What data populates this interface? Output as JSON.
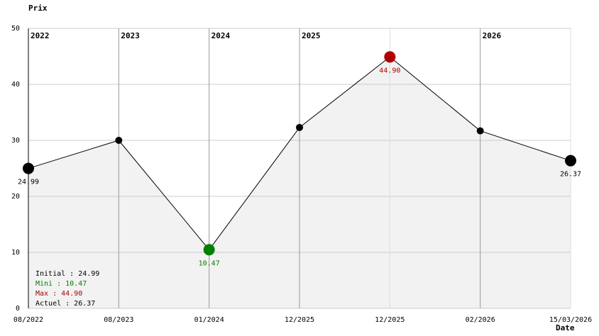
{
  "chart_data": {
    "type": "line",
    "y_label": "Prix",
    "x_label": "Date",
    "categories": [
      "08/2022",
      "08/2023",
      "01/2024",
      "12/2025",
      "12/2025",
      "02/2026",
      "15/03/2026"
    ],
    "year_markers": [
      "2022",
      "2023",
      "2024",
      "2025",
      null,
      "2026",
      null
    ],
    "values": [
      24.99,
      30.0,
      10.47,
      32.3,
      44.9,
      31.7,
      26.37
    ],
    "value_labels": [
      "24.99",
      null,
      "10.47",
      null,
      "44.90",
      null,
      "26.37"
    ],
    "point_colors": [
      "#000000",
      "#000000",
      "#008000",
      "#000000",
      "#b00000",
      "#000000",
      "#000000"
    ],
    "line_color": "#000000",
    "area_color": "#f2f2f2",
    "ylim": [
      0,
      50
    ],
    "yticks": [
      0,
      10,
      20,
      30,
      40,
      50
    ],
    "grid": true,
    "summary": [
      {
        "text": "Initial : 24.99",
        "color": "#000000"
      },
      {
        "text": "Mini : 10.47",
        "color": "#008000"
      },
      {
        "text": "Max : 44.90",
        "color": "#b00000"
      },
      {
        "text": "Actuel : 26.37",
        "color": "#000000"
      }
    ]
  }
}
